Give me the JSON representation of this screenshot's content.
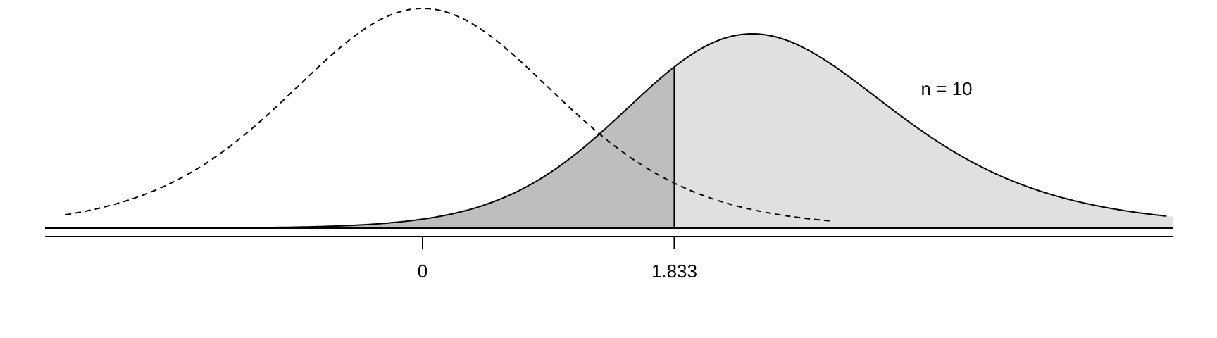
{
  "chart_data": {
    "type": "area",
    "annotation": "n = 10",
    "critical_value": 1.833,
    "x_tick_labels": [
      "0",
      "1.833"
    ],
    "x_ticks": [
      0,
      1.833
    ],
    "xlim": [
      -6,
      12
    ],
    "series": [
      {
        "distribution": "t",
        "df": 9,
        "noncentrality": 0,
        "line_style": "dashed",
        "fill": "none"
      },
      {
        "distribution": "t",
        "df": 9,
        "noncentrality": 2.4,
        "line_style": "solid",
        "fill_left_of_critical": "#bebebe",
        "fill_right_of_critical": "#e0e0e0"
      }
    ],
    "colors": {
      "dark_fill": "#bebebe",
      "light_fill": "#e0e0e0",
      "line": "#000000"
    }
  }
}
